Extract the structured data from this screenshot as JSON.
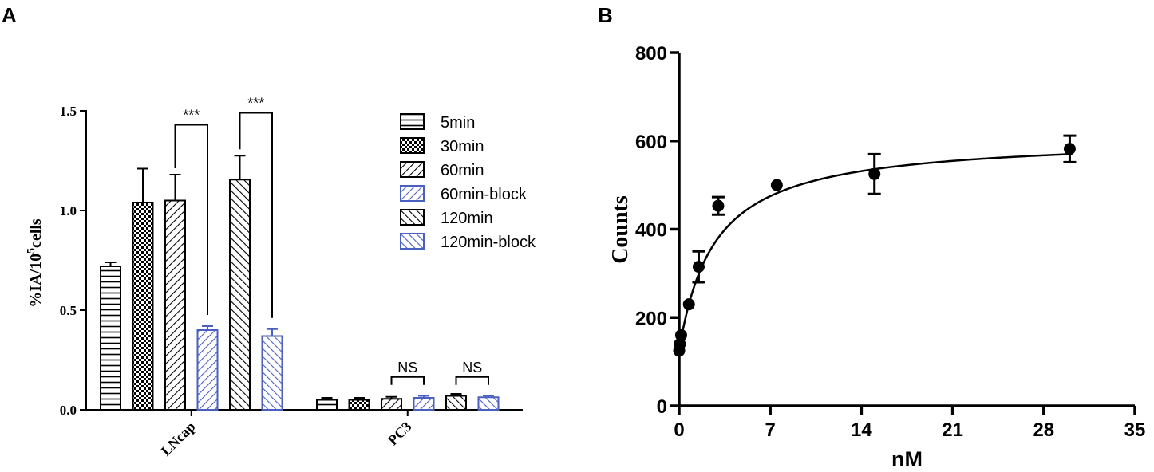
{
  "chart_data": [
    {
      "panel": "A",
      "type": "bar",
      "ylabel_main": "%IA/10",
      "ylabel_sup": "5",
      "ylabel_tail": "cells",
      "ylim": [
        0,
        1.5
      ],
      "yticks": [
        0.0,
        0.5,
        1.0,
        1.5
      ],
      "ytick_labels": [
        "0.0",
        "0.5",
        "1.0",
        "1.5"
      ],
      "categories": [
        "LNcap",
        "PC3"
      ],
      "series": [
        {
          "name": "5min",
          "values": [
            0.72,
            0.05
          ],
          "errors": [
            0.02,
            0.01
          ],
          "color": "#000000",
          "pattern": "hlines"
        },
        {
          "name": "30min",
          "values": [
            1.04,
            0.05
          ],
          "errors": [
            0.17,
            0.01
          ],
          "color": "#000000",
          "pattern": "checker"
        },
        {
          "name": "60min",
          "values": [
            1.05,
            0.055
          ],
          "errors": [
            0.13,
            0.01
          ],
          "color": "#000000",
          "pattern": "diag-right"
        },
        {
          "name": "60min-block",
          "values": [
            0.4,
            0.06
          ],
          "errors": [
            0.02,
            0.01
          ],
          "color": "#4a5fbf",
          "pattern": "diag-right"
        },
        {
          "name": "120min",
          "values": [
            1.155,
            0.07
          ],
          "errors": [
            0.12,
            0.01
          ],
          "color": "#000000",
          "pattern": "diag-left"
        },
        {
          "name": "120min-block",
          "values": [
            0.37,
            0.063
          ],
          "errors": [
            0.035,
            0.008
          ],
          "color": "#4a5fbf",
          "pattern": "diag-left"
        }
      ],
      "annotations": [
        {
          "text": "***",
          "category": 0,
          "from_series": 2,
          "to_series": 3,
          "y_top": 1.43
        },
        {
          "text": "***",
          "category": 0,
          "from_series": 4,
          "to_series": 5,
          "y_top": 1.49
        },
        {
          "text": "NS",
          "category": 1,
          "from_series": 2,
          "to_series": 3,
          "y_top": 0.165
        },
        {
          "text": "NS",
          "category": 1,
          "from_series": 4,
          "to_series": 5,
          "y_top": 0.165
        }
      ],
      "legend_position": "top-right"
    },
    {
      "panel": "B",
      "type": "scatter",
      "xlabel": "nM",
      "ylabel": "Counts",
      "xlim": [
        0,
        35
      ],
      "ylim": [
        0,
        800
      ],
      "xticks": [
        0,
        7,
        14,
        21,
        28,
        35
      ],
      "yticks": [
        0,
        200,
        400,
        600,
        800
      ],
      "points": [
        {
          "x": 0.0,
          "y": 125,
          "err": 0
        },
        {
          "x": 0.05,
          "y": 140,
          "err": 0
        },
        {
          "x": 0.15,
          "y": 160,
          "err": 0
        },
        {
          "x": 0.75,
          "y": 230,
          "err": 0
        },
        {
          "x": 1.5,
          "y": 315,
          "err": 35
        },
        {
          "x": 3.0,
          "y": 453,
          "err": 20
        },
        {
          "x": 7.5,
          "y": 500,
          "err": 0
        },
        {
          "x": 15.0,
          "y": 525,
          "err": 45
        },
        {
          "x": 30.0,
          "y": 582,
          "err": 30
        }
      ],
      "fit": {
        "model": "one-site binding",
        "bmax": 485,
        "kd": 2.7,
        "nonspecific": 125
      }
    }
  ]
}
